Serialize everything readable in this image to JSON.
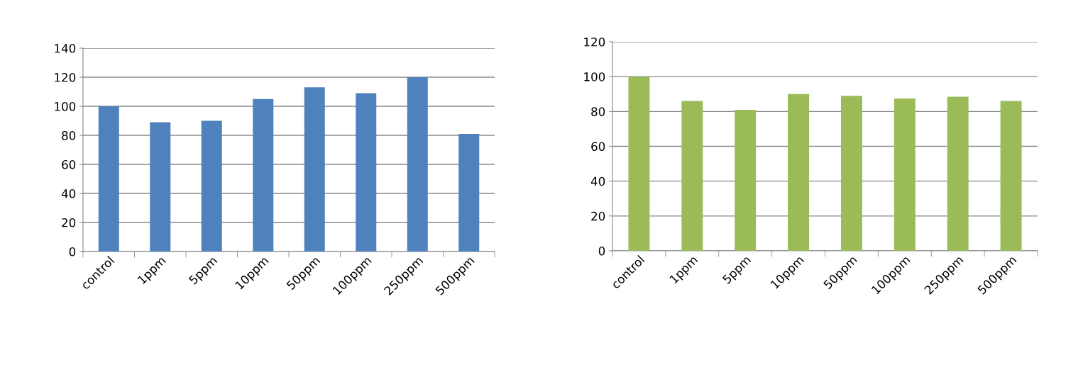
{
  "chart_data": [
    {
      "type": "bar",
      "categories": [
        "control",
        "1ppm",
        "5ppm",
        "10ppm",
        "50ppm",
        "100ppm",
        "250ppm",
        "500ppm"
      ],
      "values": [
        100,
        89,
        90,
        105,
        113,
        109,
        120,
        81
      ],
      "color": "#4f81bd",
      "ylim": [
        0,
        140
      ],
      "yticks": [
        0,
        20,
        40,
        60,
        80,
        100,
        120,
        140
      ],
      "grid": "y"
    },
    {
      "type": "bar",
      "categories": [
        "control",
        "1ppm",
        "5ppm",
        "10ppm",
        "50ppm",
        "100ppm",
        "250ppm",
        "500ppm"
      ],
      "values": [
        100,
        86,
        81,
        90,
        89,
        87.5,
        88.5,
        86
      ],
      "color": "#9bbb59",
      "ylim": [
        0,
        120
      ],
      "yticks": [
        0,
        20,
        40,
        60,
        80,
        100,
        120
      ],
      "grid": "y"
    }
  ]
}
